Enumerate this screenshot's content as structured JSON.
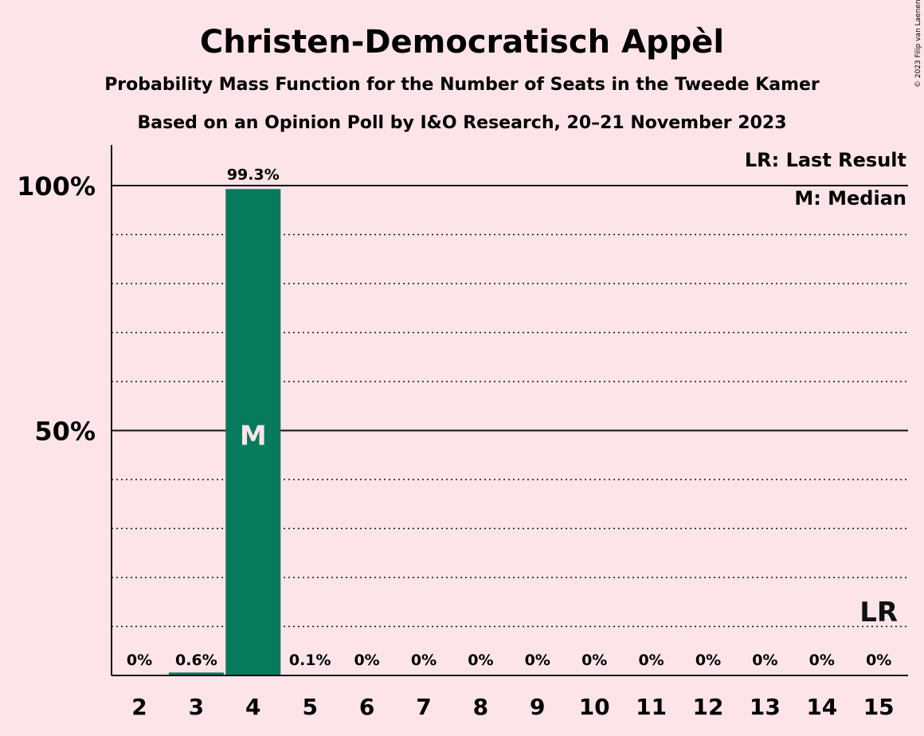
{
  "chart_data": {
    "type": "bar",
    "title": "Christen-Democratisch Appèl",
    "subtitle": "Probability Mass Function for the Number of Seats in the Tweede Kamer",
    "subtitle2": "Based on an Opinion Poll by I&O Research, 20–21 November 2023",
    "copyright": "© 2023 Filip van Laenen",
    "legend": [
      "LR: Last Result",
      "M: Median"
    ],
    "categories": [
      "2",
      "3",
      "4",
      "5",
      "6",
      "7",
      "8",
      "9",
      "10",
      "11",
      "12",
      "13",
      "14",
      "15"
    ],
    "values": [
      0,
      0.6,
      99.3,
      0.1,
      0,
      0,
      0,
      0,
      0,
      0,
      0,
      0,
      0,
      0
    ],
    "data_labels": [
      "0%",
      "0.6%",
      "99.3%",
      "0.1%",
      "0%",
      "0%",
      "0%",
      "0%",
      "0%",
      "0%",
      "0%",
      "0%",
      "0%",
      "0%"
    ],
    "y_tick_labels": [
      "50%",
      "100%"
    ],
    "ylim": [
      0,
      100
    ],
    "median": {
      "category": "4",
      "label": "M"
    },
    "last_result": {
      "category": "15",
      "label": "LR"
    },
    "colors": {
      "bar": "#077a5c",
      "background": "#fce4e8",
      "text": "#111111",
      "marker_text": "#fce4e8"
    }
  }
}
